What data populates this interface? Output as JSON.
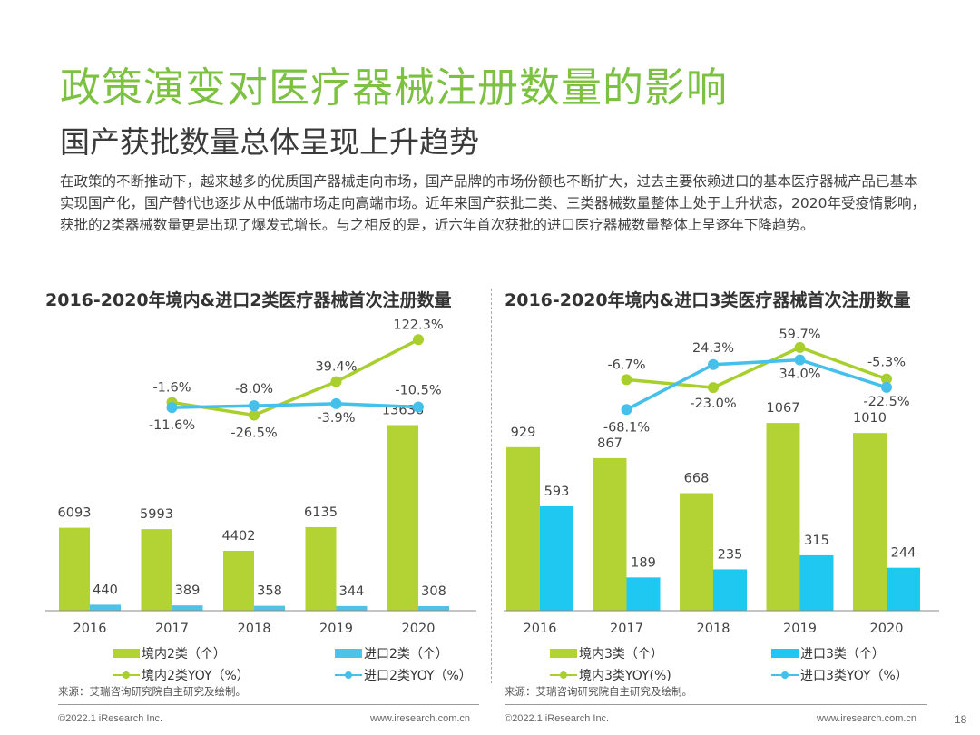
{
  "header": {
    "title": "政策演变对医疗器械注册数量的影响",
    "subtitle": "国产获批数量总体呈现上升趋势",
    "description": "在政策的不断推动下，越来越多的优质国产器械走向市场，国产品牌的市场份额也不断扩大，过去主要依赖进口的基本医疗器械产品已基本实现国产化，国产替代也逐步从中低端市场走向高端市场。近年来国产获批二类、三类器械数量整体上处于上升状态，2020年受疫情影响，获批的2类器械数量更是出现了爆发式增长。与之相反的是，近六年首次获批的进口医疗器械数量整体上呈逐年下降趋势。"
  },
  "colors": {
    "title_green": "#7dc142",
    "domestic_bar": "#b3d334",
    "import_bar_left": "#4fc3e6",
    "import_bar_right": "#1ec8f0",
    "domestic_line": "#a8cf2e",
    "import_line": "#44c0ea"
  },
  "chart_data": [
    {
      "type": "bar",
      "title": "2016-2020年境内&进口2类医疗器械首次注册数量",
      "categories": [
        "2016",
        "2017",
        "2018",
        "2019",
        "2020"
      ],
      "series": [
        {
          "name": "境内2类（个）",
          "kind": "bar",
          "values": [
            6093,
            5993,
            4402,
            6135,
            13636
          ],
          "labels": [
            "6093",
            "5993",
            "4402",
            "6135",
            "13636"
          ]
        },
        {
          "name": "进口2类（个）",
          "kind": "bar",
          "values": [
            440,
            389,
            358,
            344,
            308
          ],
          "labels": [
            "440",
            "389",
            "358",
            "344",
            "308"
          ]
        },
        {
          "name": "境内2类YOY（%）",
          "kind": "line",
          "values": [
            -1.6,
            -26.5,
            39.4,
            122.3
          ],
          "x_start_index": 1,
          "labels": [
            "-1.6%",
            "-26.5%",
            "39.4%",
            "122.3%"
          ]
        },
        {
          "name": "进口2类YOY（%）",
          "kind": "line",
          "values": [
            -11.6,
            -8.0,
            -3.9,
            -10.5
          ],
          "x_start_index": 1,
          "labels": [
            "-11.6%",
            "-8.0%",
            "-3.9%",
            "-10.5%"
          ]
        }
      ],
      "xlabel": "",
      "ylabel": "",
      "legend_position": "bottom",
      "grid": false
    },
    {
      "type": "bar",
      "title": "2016-2020年境内&进口3类医疗器械首次注册数量",
      "categories": [
        "2016",
        "2017",
        "2018",
        "2019",
        "2020"
      ],
      "series": [
        {
          "name": "境内3类（个）",
          "kind": "bar",
          "values": [
            929,
            867,
            668,
            1067,
            1010
          ],
          "labels": [
            "929",
            "867",
            "668",
            "1067",
            "1010"
          ]
        },
        {
          "name": "进口3类（个）",
          "kind": "bar",
          "values": [
            593,
            189,
            235,
            315,
            244
          ],
          "labels": [
            "593",
            "189",
            "235",
            "315",
            "244"
          ]
        },
        {
          "name": "境内3类YOY(%)",
          "kind": "line",
          "values": [
            -6.7,
            -23.0,
            59.7,
            -5.3
          ],
          "x_start_index": 1,
          "labels": [
            "-6.7%",
            "-23.0%",
            "59.7%",
            "-5.3%"
          ]
        },
        {
          "name": "进口3类YOY（%）",
          "kind": "line",
          "values": [
            -68.1,
            24.3,
            34.0,
            -22.5
          ],
          "x_start_index": 1,
          "labels": [
            "-68.1%",
            "24.3%",
            "34.0%",
            "-22.5%"
          ]
        }
      ],
      "xlabel": "",
      "ylabel": "",
      "legend_position": "bottom",
      "grid": false
    }
  ],
  "source_note": "来源：艾瑞咨询研究院自主研究及绘制。",
  "footer": {
    "copyright": "©2022.1 iResearch Inc.",
    "website": "www.iresearch.com.cn",
    "page_number": "18"
  }
}
